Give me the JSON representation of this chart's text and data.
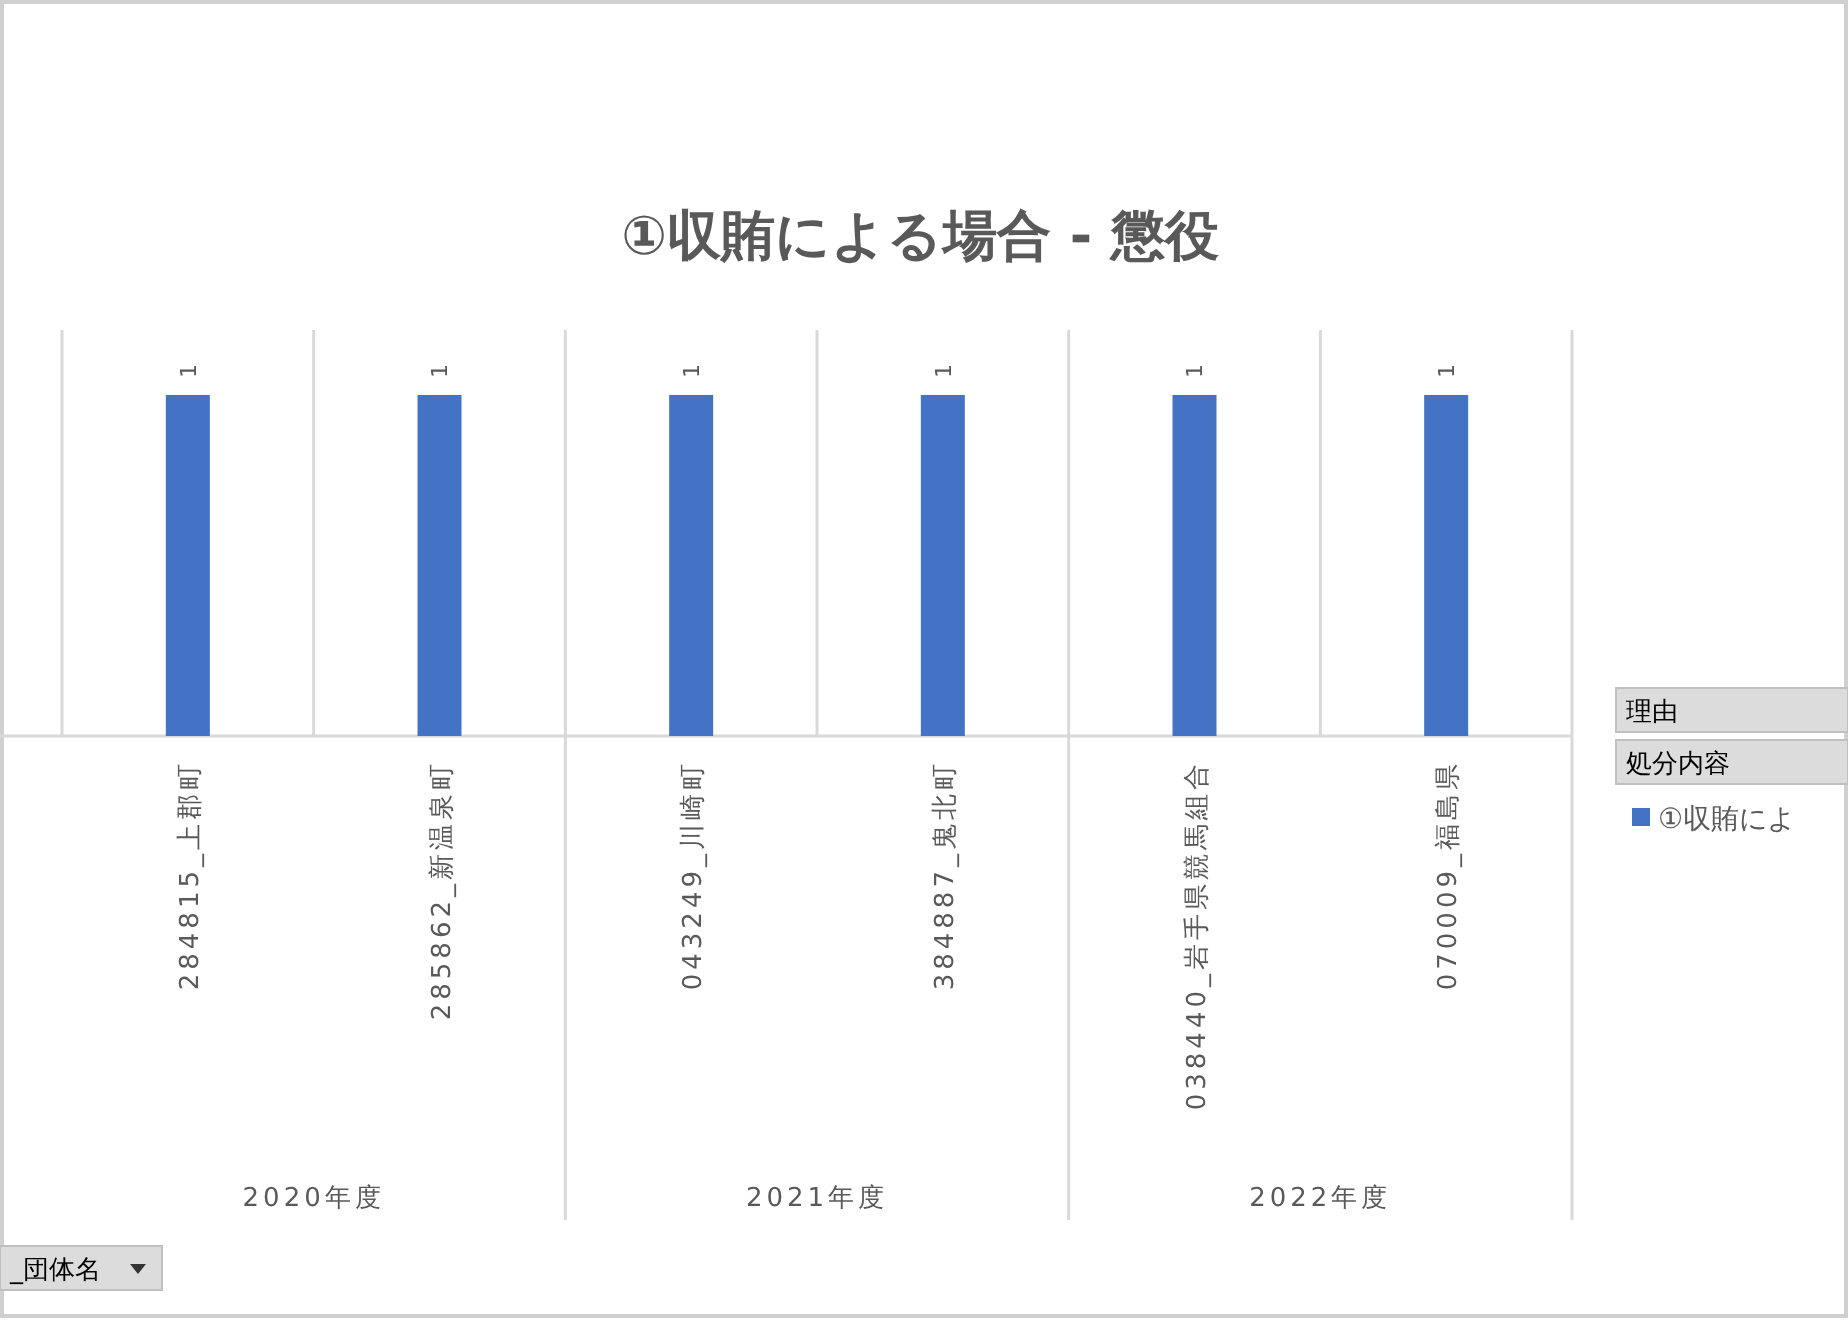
{
  "chart_data": {
    "type": "bar",
    "title": "①収賄による場合 - 懲役",
    "categories": [
      "284815_上郡町",
      "285862_新温泉町",
      "043249_川崎町",
      "384887_鬼北町",
      "038440_岩手県競馬組合",
      "070009_福島県"
    ],
    "series": [
      {
        "name": "①収賄によ",
        "color": "#4472c4",
        "values": [
          1,
          1,
          1,
          1,
          1,
          1
        ]
      }
    ],
    "data_labels": true,
    "legend": "right",
    "grid": "x",
    "annotations": [
      "2020年度",
      "2021年度",
      "2022年度",
      "理由",
      "処分内容",
      "_団体名"
    ]
  }
}
